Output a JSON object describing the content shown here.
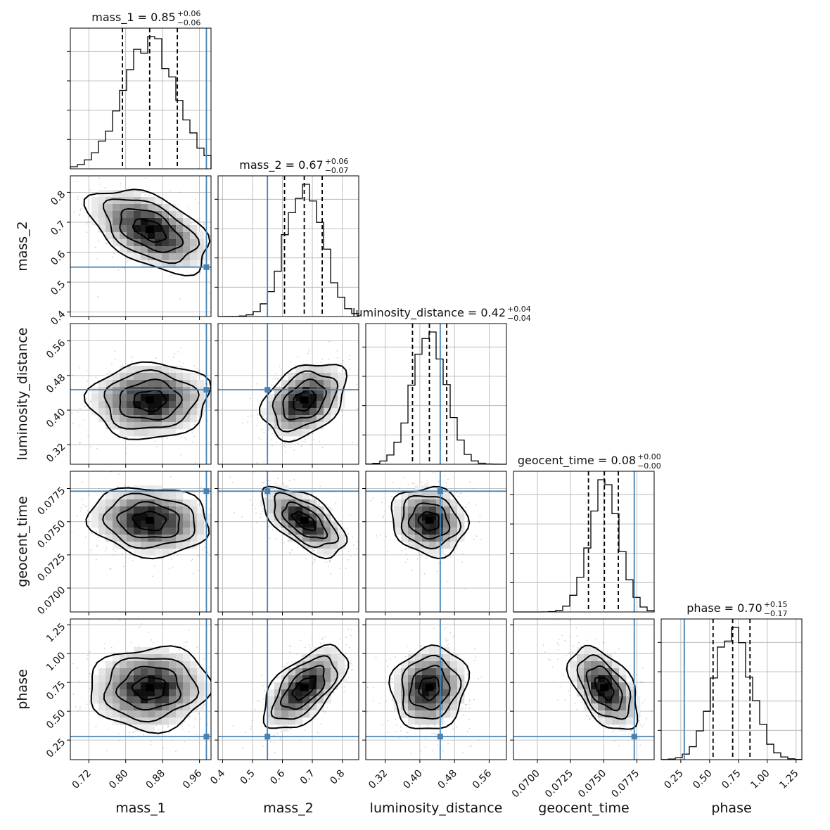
{
  "chart_data": {
    "type": "scatter",
    "subtype": "corner_plot",
    "parameters": [
      "mass_1",
      "mass_2",
      "luminosity_distance",
      "geocent_time",
      "phase"
    ],
    "axis_labels": {
      "mass_1": "mass_1",
      "mass_2": "mass_2",
      "luminosity_distance": "luminosity_distance",
      "geocent_time": "geocent_time",
      "phase": "phase"
    },
    "titles": [
      {
        "param": "mass_1",
        "text": "mass_1 = 0.85",
        "plus": "+0.06",
        "minus": "−0.06"
      },
      {
        "param": "mass_2",
        "text": "mass_2 = 0.67",
        "plus": "+0.06",
        "minus": "−0.07"
      },
      {
        "param": "luminosity_distance",
        "text": "luminosity_distance = 0.42",
        "plus": "+0.04",
        "minus": "−0.04"
      },
      {
        "param": "geocent_time",
        "text": "geocent_time = 0.08",
        "plus": "+0.00",
        "minus": "−0.00"
      },
      {
        "param": "phase",
        "text": "phase = 0.70",
        "plus": "+0.15",
        "minus": "−0.17"
      }
    ],
    "ranges": {
      "mass_1": [
        0.68,
        0.985
      ],
      "mass_2": [
        0.385,
        0.855
      ],
      "luminosity_distance": [
        0.275,
        0.6
      ],
      "geocent_time": [
        0.0682,
        0.0788
      ],
      "phase": [
        0.08,
        1.3
      ]
    },
    "ticks": {
      "mass_1": [
        "0.72",
        "0.80",
        "0.88",
        "0.96"
      ],
      "mass_2": [
        "0.4",
        "0.5",
        "0.6",
        "0.7",
        "0.8"
      ],
      "luminosity_distance": [
        "0.32",
        "0.40",
        "0.48",
        "0.56"
      ],
      "geocent_time": [
        "0.0700",
        "0.0725",
        "0.0750",
        "0.0775"
      ],
      "phase": [
        "0.25",
        "0.50",
        "0.75",
        "1.00",
        "1.25"
      ]
    },
    "truths": {
      "mass_1": 0.975,
      "mass_2": 0.55,
      "luminosity_distance": 0.447,
      "geocent_time": 0.0773,
      "phase": 0.28
    },
    "medians": {
      "mass_1": 0.852,
      "mass_2": 0.673,
      "luminosity_distance": 0.422,
      "geocent_time": 0.07505,
      "phase": 0.7
    },
    "quantiles_16_84": {
      "mass_1": [
        0.793,
        0.912
      ],
      "mass_2": [
        0.607,
        0.733
      ],
      "luminosity_distance": [
        0.383,
        0.462
      ],
      "geocent_time": [
        0.07385,
        0.0761
      ],
      "phase": [
        0.53,
        0.85
      ]
    },
    "sigma": {
      "mass_1": 0.058,
      "mass_2": 0.062,
      "luminosity_distance": 0.039,
      "geocent_time": 0.00115,
      "phase": 0.16
    },
    "correlations": {
      "mass_1|mass_2": -0.5,
      "mass_1|luminosity_distance": 0.05,
      "mass_1|geocent_time": -0.1,
      "mass_1|phase": 0.05,
      "mass_2|luminosity_distance": 0.35,
      "mass_2|geocent_time": -0.6,
      "mass_2|phase": 0.6,
      "luminosity_distance|geocent_time": -0.1,
      "luminosity_distance|phase": 0.1,
      "geocent_time|phase": -0.5
    },
    "grid": true,
    "colors": {
      "truth": "#4682b4",
      "contour": "#000000",
      "points": "#808080"
    }
  }
}
